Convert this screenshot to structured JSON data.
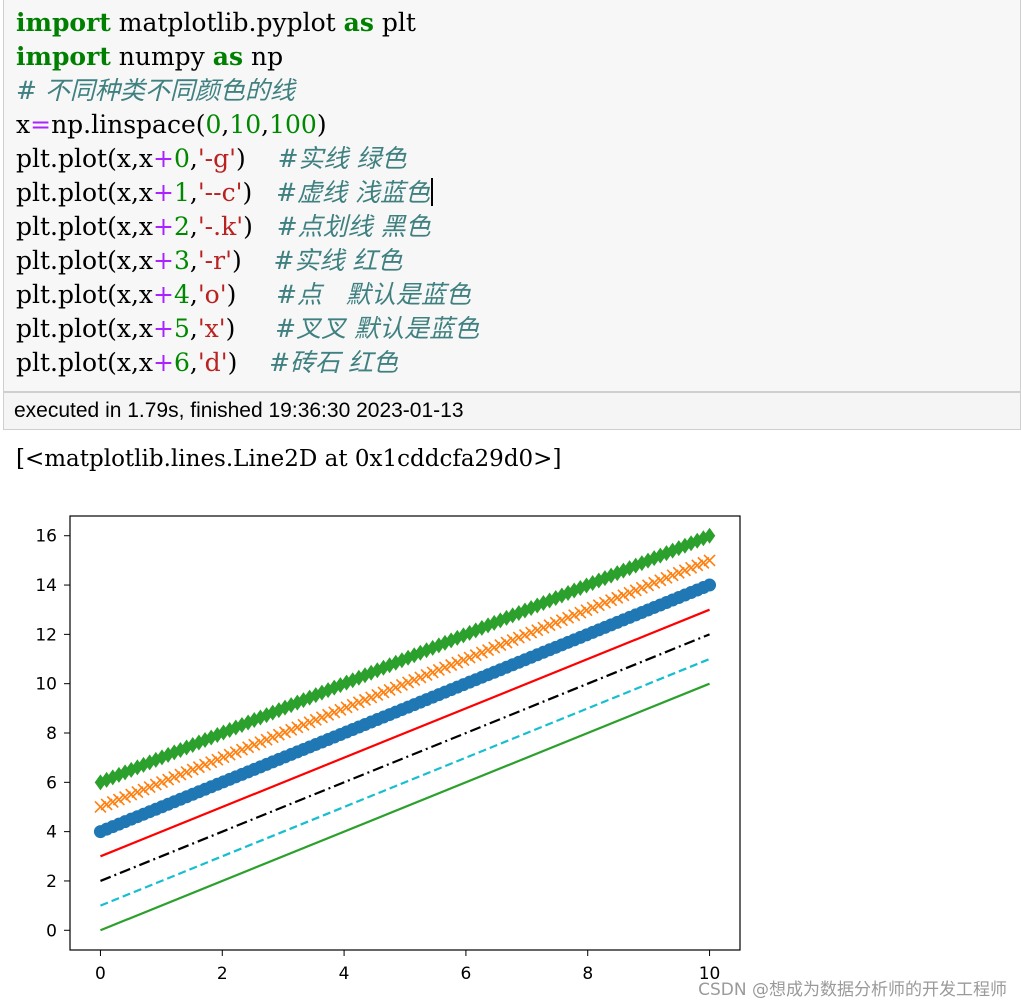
{
  "code_lines": [
    [
      {
        "t": "import",
        "c": "kw"
      },
      {
        "t": " matplotlib.pyplot ",
        "c": ""
      },
      {
        "t": "as",
        "c": "kw"
      },
      {
        "t": " plt",
        "c": ""
      }
    ],
    [
      {
        "t": "import",
        "c": "kw"
      },
      {
        "t": " numpy ",
        "c": ""
      },
      {
        "t": "as",
        "c": "kw"
      },
      {
        "t": " np",
        "c": ""
      }
    ],
    [
      {
        "t": "# 不同种类不同颜色的线",
        "c": "cm"
      }
    ],
    [
      {
        "t": "x",
        "c": ""
      },
      {
        "t": "=",
        "c": "op"
      },
      {
        "t": "np.linspace(",
        "c": ""
      },
      {
        "t": "0",
        "c": "num"
      },
      {
        "t": ",",
        "c": ""
      },
      {
        "t": "10",
        "c": "num"
      },
      {
        "t": ",",
        "c": ""
      },
      {
        "t": "100",
        "c": "num"
      },
      {
        "t": ")",
        "c": ""
      }
    ],
    [
      {
        "t": "plt.plot(x,x",
        "c": ""
      },
      {
        "t": "+",
        "c": "op"
      },
      {
        "t": "0",
        "c": "num"
      },
      {
        "t": ",",
        "c": ""
      },
      {
        "t": "'-g'",
        "c": "str"
      },
      {
        "t": ")    ",
        "c": ""
      },
      {
        "t": "#实线 绿色",
        "c": "cm"
      }
    ],
    [
      {
        "t": "plt.plot(x,x",
        "c": ""
      },
      {
        "t": "+",
        "c": "op"
      },
      {
        "t": "1",
        "c": "num"
      },
      {
        "t": ",",
        "c": ""
      },
      {
        "t": "'--c'",
        "c": "str"
      },
      {
        "t": ")   ",
        "c": ""
      },
      {
        "t": "#虚线 浅蓝色",
        "c": "cm"
      },
      {
        "t": "",
        "c": "cursor"
      }
    ],
    [
      {
        "t": "plt.plot(x,x",
        "c": ""
      },
      {
        "t": "+",
        "c": "op"
      },
      {
        "t": "2",
        "c": "num"
      },
      {
        "t": ",",
        "c": ""
      },
      {
        "t": "'-.k'",
        "c": "str"
      },
      {
        "t": ")   ",
        "c": ""
      },
      {
        "t": "#点划线 黑色",
        "c": "cm"
      }
    ],
    [
      {
        "t": "plt.plot(x,x",
        "c": ""
      },
      {
        "t": "+",
        "c": "op"
      },
      {
        "t": "3",
        "c": "num"
      },
      {
        "t": ",",
        "c": ""
      },
      {
        "t": "'-r'",
        "c": "str"
      },
      {
        "t": ")    ",
        "c": ""
      },
      {
        "t": "#实线 红色",
        "c": "cm"
      }
    ],
    [
      {
        "t": "plt.plot(x,x",
        "c": ""
      },
      {
        "t": "+",
        "c": "op"
      },
      {
        "t": "4",
        "c": "num"
      },
      {
        "t": ",",
        "c": ""
      },
      {
        "t": "'o'",
        "c": "str"
      },
      {
        "t": ")     ",
        "c": ""
      },
      {
        "t": "#点   默认是蓝色",
        "c": "cm"
      }
    ],
    [
      {
        "t": "plt.plot(x,x",
        "c": ""
      },
      {
        "t": "+",
        "c": "op"
      },
      {
        "t": "5",
        "c": "num"
      },
      {
        "t": ",",
        "c": ""
      },
      {
        "t": "'x'",
        "c": "str"
      },
      {
        "t": ")     ",
        "c": ""
      },
      {
        "t": "#叉叉 默认是蓝色",
        "c": "cm"
      }
    ],
    [
      {
        "t": "plt.plot(x,x",
        "c": ""
      },
      {
        "t": "+",
        "c": "op"
      },
      {
        "t": "6",
        "c": "num"
      },
      {
        "t": ",",
        "c": ""
      },
      {
        "t": "'d'",
        "c": "str"
      },
      {
        "t": ")    ",
        "c": ""
      },
      {
        "t": "#砖石 红色",
        "c": "cm"
      }
    ]
  ],
  "execution": {
    "status": "executed in 1.79s, finished 19:36:30 2023-01-13"
  },
  "output_text": "[<matplotlib.lines.Line2D at 0x1cddcfa29d0>]",
  "watermark": "CSDN @想成为数据分析师的开发工程师",
  "chart_data": {
    "type": "line",
    "title": "",
    "xlabel": "",
    "ylabel": "",
    "xlim": [
      -0.5,
      10.5
    ],
    "ylim": [
      -0.8,
      16.8
    ],
    "xticks": [
      0,
      2,
      4,
      6,
      8,
      10
    ],
    "yticks": [
      0,
      2,
      4,
      6,
      8,
      10,
      12,
      14,
      16
    ],
    "x_start": 0,
    "x_end": 10,
    "n_points": 100,
    "grid": false,
    "series": [
      {
        "offset": 0,
        "style": "solid",
        "marker": "none",
        "color": "#2ca02c"
      },
      {
        "offset": 1,
        "style": "dashed",
        "marker": "none",
        "color": "#17becf"
      },
      {
        "offset": 2,
        "style": "dashdot",
        "marker": "none",
        "color": "#000000"
      },
      {
        "offset": 3,
        "style": "solid",
        "marker": "none",
        "color": "#ff0000"
      },
      {
        "offset": 4,
        "style": "none",
        "marker": "circle",
        "color": "#1f77b4"
      },
      {
        "offset": 5,
        "style": "none",
        "marker": "x",
        "color": "#ff7f0e"
      },
      {
        "offset": 6,
        "style": "none",
        "marker": "diamond",
        "color": "#2ca02c"
      }
    ]
  }
}
